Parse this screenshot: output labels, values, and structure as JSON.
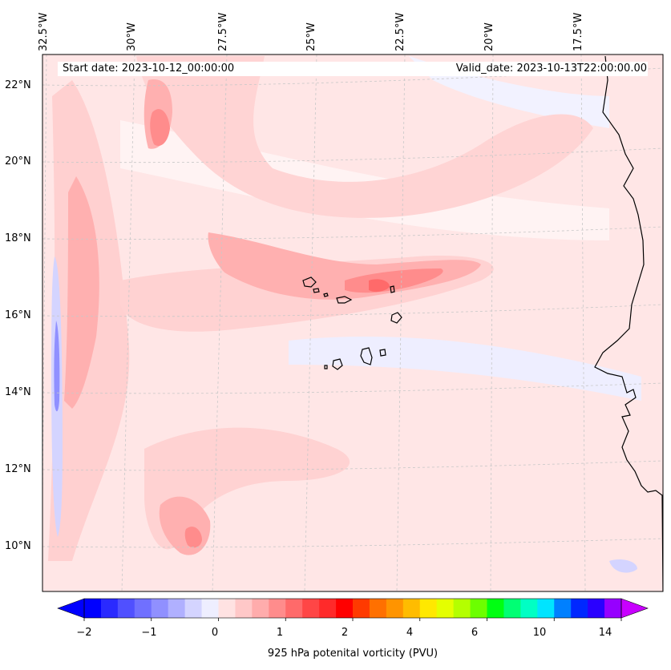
{
  "map": {
    "longitude_labels": [
      "32.5°W",
      "30°W",
      "27.5°W",
      "25°W",
      "22.5°W",
      "20°W",
      "17.5°W"
    ],
    "latitude_labels": [
      "22°N",
      "20°N",
      "18°N",
      "16°N",
      "14°N",
      "12°N",
      "10°N"
    ],
    "start_date": "Start date: 2023-10-12_00:00:00",
    "valid_date": "Valid_date: 2023-10-13T22:00:00.00",
    "field": "925 hPa potential vorticity",
    "background_color": "#ffe6e6",
    "coastline_color": "#000000",
    "gridline_color": "#c8c8c8"
  },
  "colorbar": {
    "title": "925 hPa potenital vorticity (PVU)",
    "tick_labels": [
      "−2",
      "−1",
      "0",
      "1",
      "2",
      "4",
      "6",
      "10",
      "14"
    ],
    "colors": [
      "#0000ff",
      "#2a2aff",
      "#5050ff",
      "#7070ff",
      "#9090ff",
      "#b0b0ff",
      "#d4d4ff",
      "#eeeeff",
      "#ffe2e2",
      "#ffc8c8",
      "#ffacac",
      "#ff8c8c",
      "#ff6a6a",
      "#ff4646",
      "#ff2a2a",
      "#ff0000",
      "#ff3a00",
      "#ff7000",
      "#ff9400",
      "#ffbc00",
      "#ffe800",
      "#e4ff00",
      "#b4ff00",
      "#6cff00",
      "#00ff12",
      "#00ff74",
      "#00ffc4",
      "#00e4ff",
      "#0080ff",
      "#0028ff",
      "#2a00ff",
      "#9600ff"
    ],
    "extend_low_color": "#0000ff",
    "extend_high_color": "#c800ff"
  }
}
